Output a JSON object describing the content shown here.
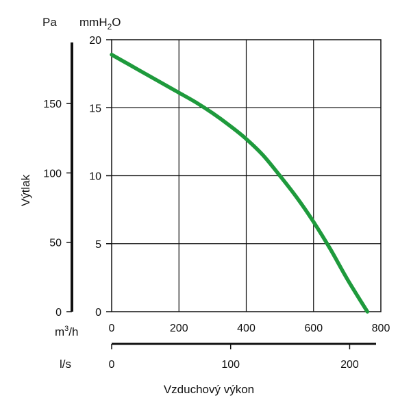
{
  "chart_data": {
    "type": "line",
    "units": {
      "pressure_left": "Pa",
      "pressure_right": "mmH2O",
      "flow_m3h": "m³/h",
      "flow_ls": "l/s"
    },
    "ylabel": "Výtlak",
    "xlabel": "Vzduchový výkon",
    "x_ticks_m3h": [
      "0",
      "200",
      "400",
      "600",
      "800"
    ],
    "x_ticks_ls": [
      "0",
      "100",
      "200"
    ],
    "y_ticks_pa": [
      "0",
      "50",
      "100",
      "150"
    ],
    "y_ticks_mmh2o": [
      "0",
      "5",
      "10",
      "15",
      "20"
    ],
    "xlim_m3h": [
      0,
      800
    ],
    "xlim_ls": [
      0,
      222.2
    ],
    "ylim_mmh2o": [
      0,
      20
    ],
    "ylim_pa": [
      0,
      196
    ],
    "grid": true,
    "series": [
      {
        "color": "#1e9a3c",
        "x": [
          0,
          50,
          100,
          150,
          200,
          250,
          300,
          350,
          400,
          450,
          500,
          550,
          600,
          650,
          700,
          760
        ],
        "y": [
          18.9,
          18.2,
          17.5,
          16.8,
          16.1,
          15.4,
          14.6,
          13.7,
          12.7,
          11.5,
          10.0,
          8.4,
          6.6,
          4.6,
          2.4,
          0
        ]
      }
    ]
  }
}
